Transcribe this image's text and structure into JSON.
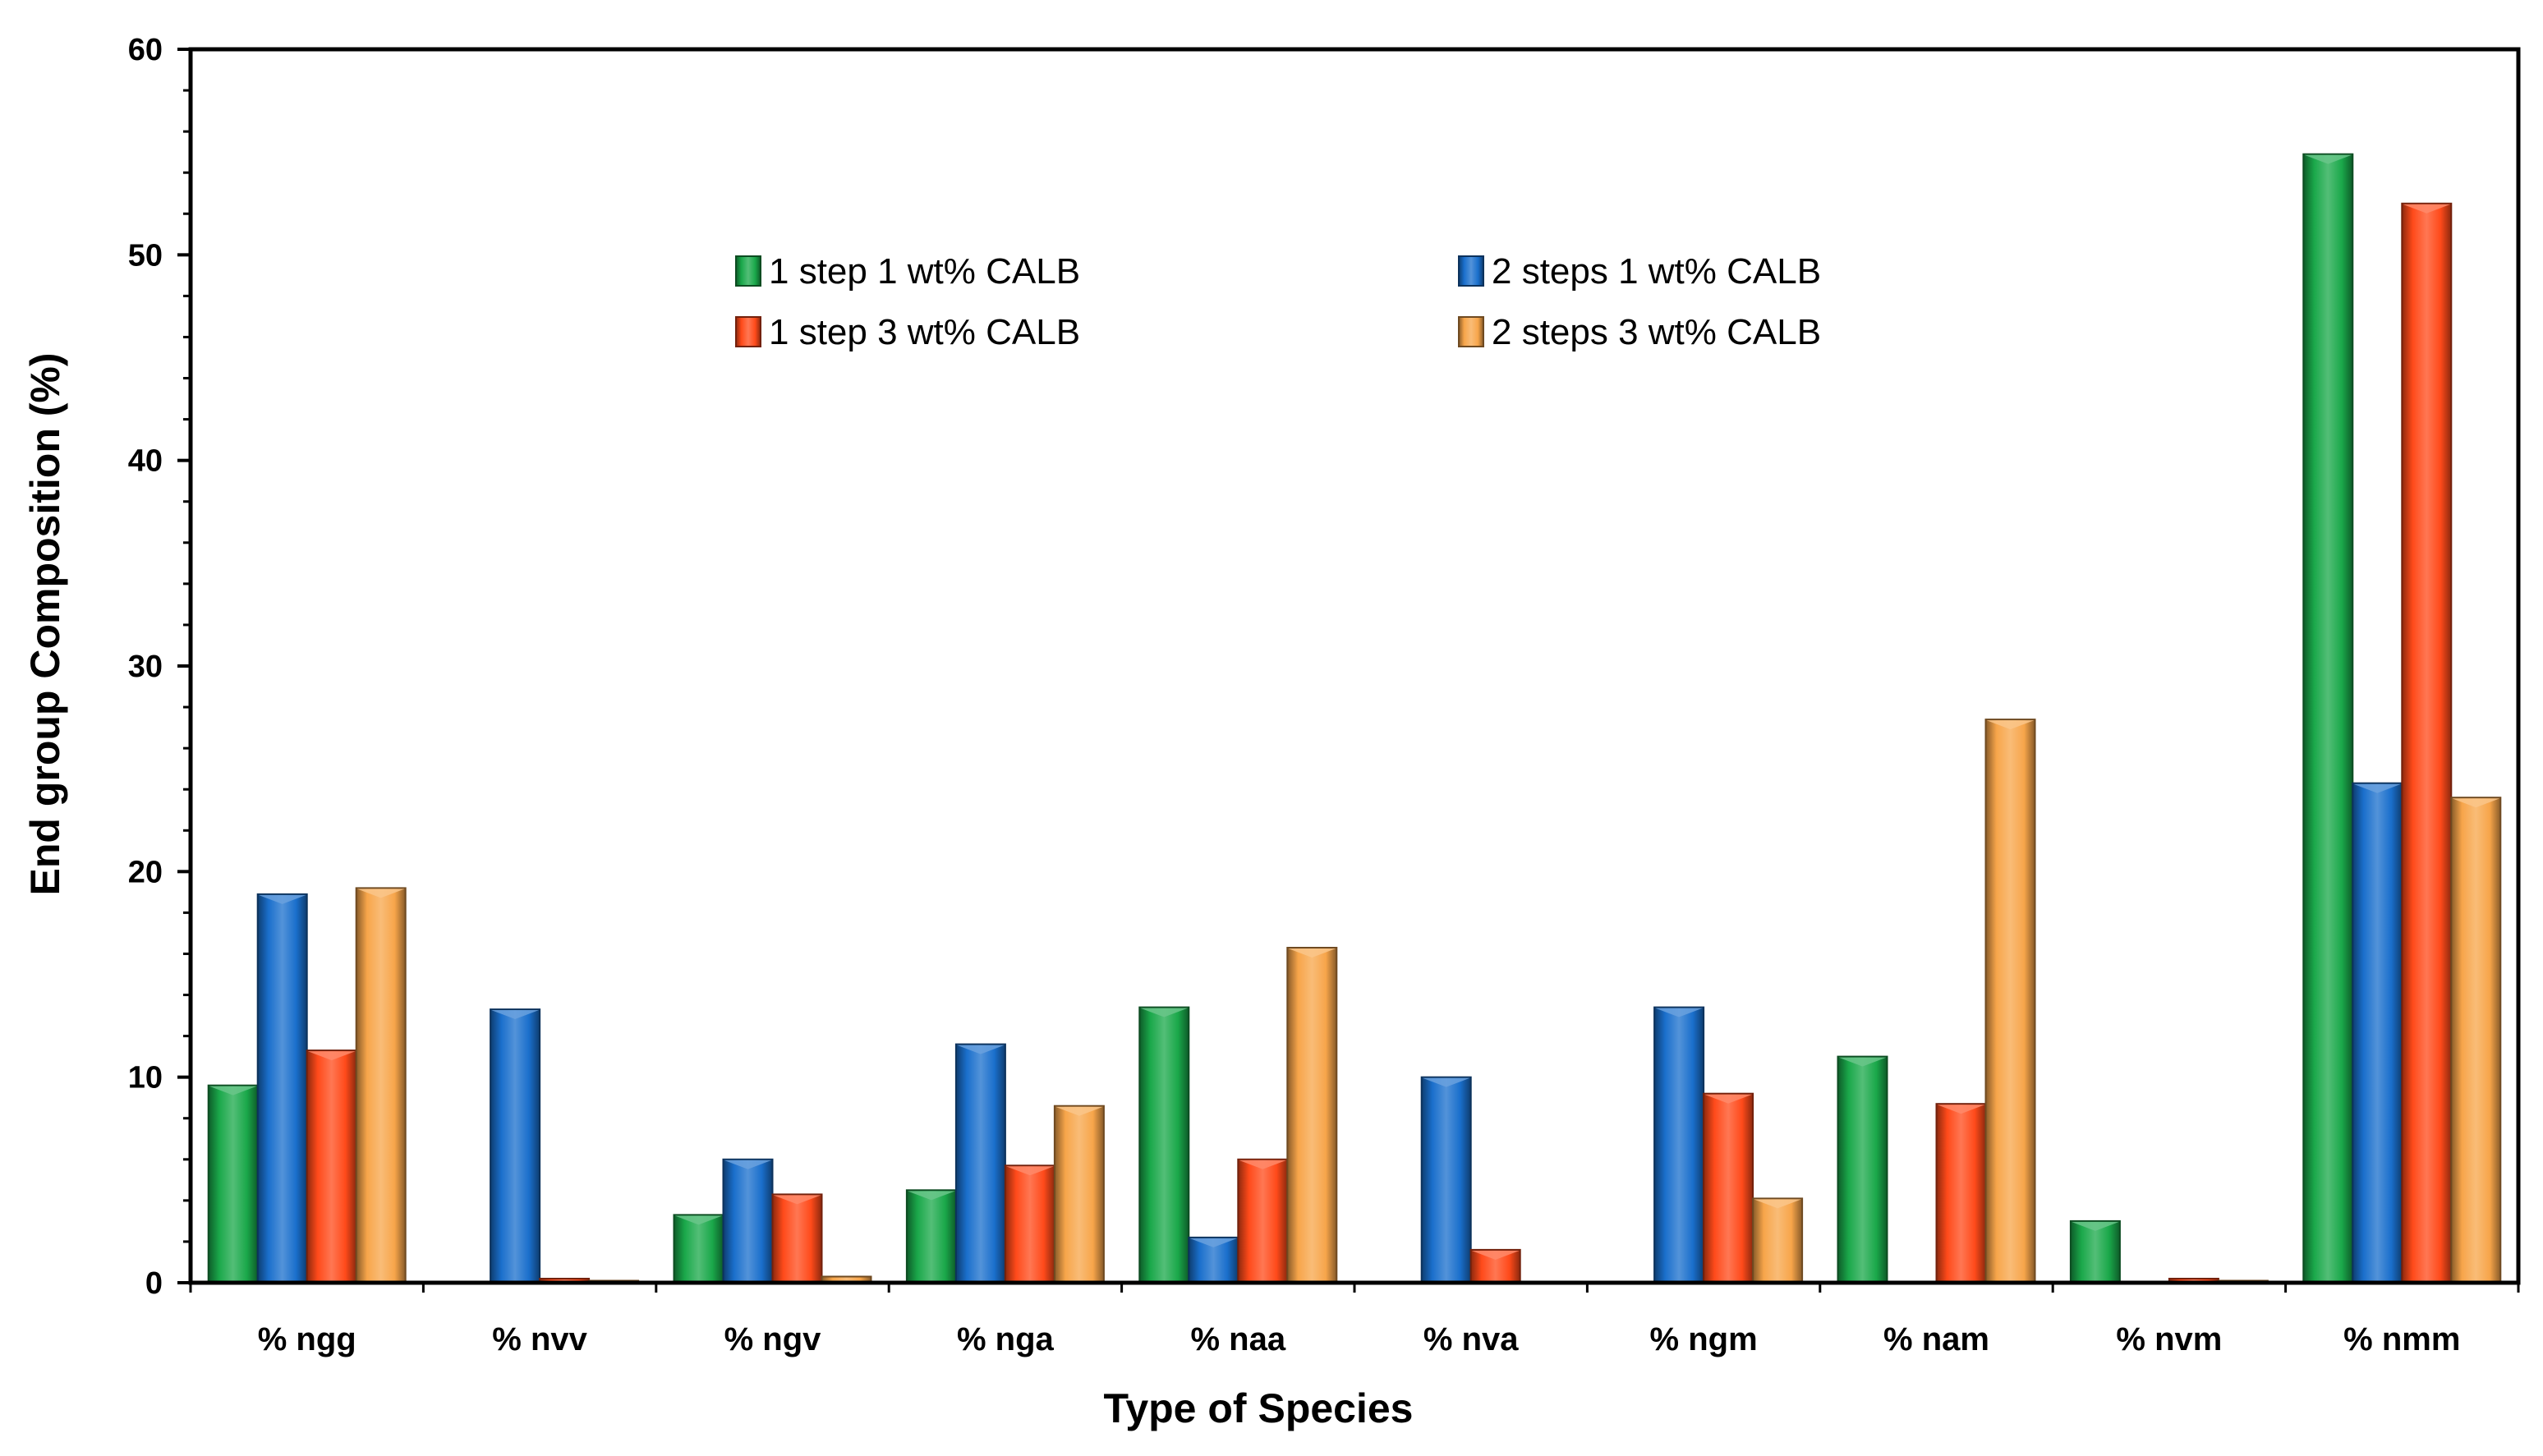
{
  "chart_data": {
    "type": "bar",
    "title": "",
    "xlabel": "Type of Species",
    "ylabel": "End group Composition (%)",
    "ylim": [
      0,
      60
    ],
    "yticks": [
      0,
      10,
      20,
      30,
      40,
      50,
      60
    ],
    "grid": false,
    "legend_position": "top-center",
    "categories": [
      "% ngg",
      "% nvv",
      "% ngv",
      "% nga",
      "% naa",
      "% nva",
      "% ngm",
      "% nam",
      "% nvm",
      "% nmm"
    ],
    "series": [
      {
        "name": "1 step 1 wt% CALB",
        "color": "#1aa84a",
        "values": [
          9.6,
          0,
          3.3,
          4.5,
          13.4,
          0,
          0,
          11.0,
          3.0,
          54.9
        ]
      },
      {
        "name": "2 steps 1 wt% CALB",
        "color": "#1a6fcc",
        "values": [
          18.9,
          13.3,
          6.0,
          11.6,
          2.2,
          10.0,
          13.4,
          0,
          0,
          24.3
        ]
      },
      {
        "name": "1 step 3 wt% CALB",
        "color": "#ff4a1a",
        "values": [
          11.3,
          0.2,
          4.3,
          5.7,
          6.0,
          1.6,
          9.2,
          8.7,
          0.2,
          52.5
        ]
      },
      {
        "name": "2 steps 3 wt% CALB",
        "color": "#f7a54a",
        "values": [
          19.2,
          0.1,
          0.3,
          8.6,
          16.3,
          0,
          4.1,
          27.4,
          0.1,
          23.6
        ]
      }
    ]
  }
}
